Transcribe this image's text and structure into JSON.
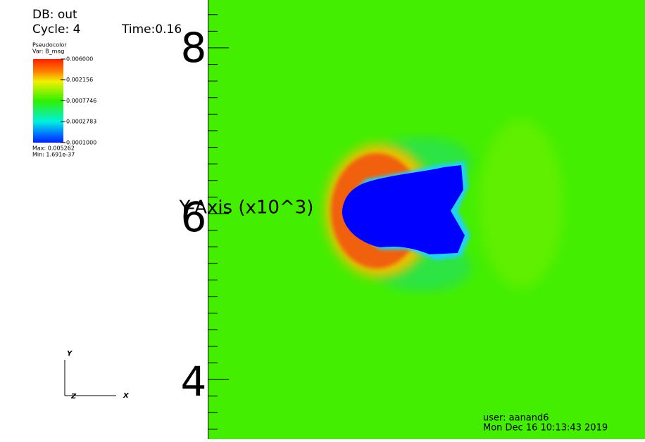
{
  "db": "DB: out",
  "cycle": "Cycle: 4",
  "time": "Time:0.16",
  "legend": {
    "title": "Pseudocolor",
    "var": "Var: B_mag",
    "labels": [
      "0.006000",
      "0.002156",
      "0.0007746",
      "0.0002783",
      "0.0001000"
    ],
    "max": "Max:  0.005262",
    "min": "Min:  1.691e-37"
  },
  "axis": {
    "title": "Y-Axis (x10^3)",
    "ticks": [
      "8",
      "6",
      "4"
    ]
  },
  "triad": {
    "y": "Y",
    "z": "Z",
    "x": "X"
  },
  "user": {
    "name": "user: aanand6",
    "date": "Mon Dec 16 10:13:43 2019"
  }
}
